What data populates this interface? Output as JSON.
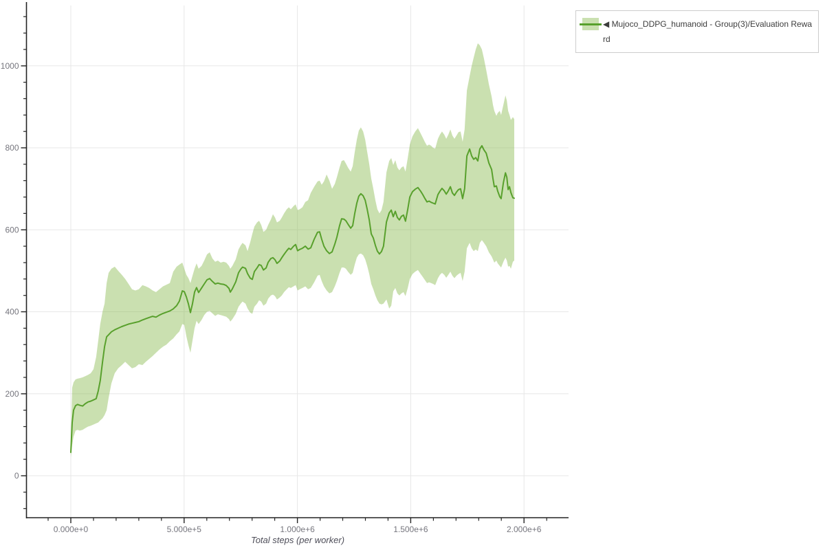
{
  "legend": {
    "collapse_icon": "◀",
    "label": "Mujoco_DDPG_humanoid - Group(3)/Evaluation Reward",
    "full_text": "◀ Mujoco_DDPG_humanoid - Group(3)/Evaluation Reward"
  },
  "axes": {
    "x": {
      "title": "Total steps (per worker)",
      "tick_values": [
        0,
        500000,
        1000000,
        1500000,
        2000000
      ],
      "tick_labels": [
        "0.000e+0",
        "5.000e+5",
        "1.000e+6",
        "1.500e+6",
        "2.000e+6"
      ],
      "minor_step": 100000
    },
    "y": {
      "tick_values": [
        0,
        200,
        400,
        600,
        800,
        1000
      ],
      "tick_labels": [
        "0",
        "200",
        "400",
        "600",
        "800",
        "1000"
      ],
      "minor_step": 40
    }
  },
  "colors": {
    "line": "#58a02c",
    "band": "rgba(138,187,80,0.45)",
    "grid": "#e7e7e7",
    "axis": "#222222",
    "tick_text": "#75757d",
    "legend_border": "#cccccc"
  },
  "chart_data": {
    "type": "line",
    "title": "",
    "xlabel": "Total steps (per worker)",
    "ylabel": "",
    "grid": true,
    "legend_position": "top-right-outside",
    "xlim": [
      -196000,
      2196000
    ],
    "ylim": [
      -102,
      1150
    ],
    "series": [
      {
        "name": "Mujoco_DDPG_humanoid - Group(3)/Evaluation Reward",
        "color": "#58a02c",
        "band_color": "rgba(138,187,80,0.45)",
        "points_format": [
          "step",
          "band_low",
          "mean",
          "band_high"
        ],
        "points": [
          [
            0,
            45,
            57,
            80
          ],
          [
            6000,
            75,
            130,
            215
          ],
          [
            12000,
            95,
            160,
            228
          ],
          [
            21000,
            110,
            171,
            235
          ],
          [
            30000,
            112,
            174,
            237
          ],
          [
            39000,
            110,
            172,
            238
          ],
          [
            52000,
            112,
            170,
            240
          ],
          [
            64000,
            116,
            176,
            243
          ],
          [
            76000,
            120,
            180,
            246
          ],
          [
            88000,
            122,
            182,
            250
          ],
          [
            100000,
            125,
            185,
            260
          ],
          [
            112000,
            128,
            188,
            290
          ],
          [
            121000,
            130,
            207,
            330
          ],
          [
            130000,
            135,
            232,
            370
          ],
          [
            140000,
            140,
            277,
            400
          ],
          [
            149000,
            148,
            315,
            420
          ],
          [
            158000,
            160,
            339,
            470
          ],
          [
            167000,
            190,
            344,
            495
          ],
          [
            179000,
            225,
            351,
            505
          ],
          [
            194000,
            250,
            356,
            510
          ],
          [
            209000,
            262,
            360,
            500
          ],
          [
            225000,
            270,
            364,
            490
          ],
          [
            240000,
            278,
            367,
            480
          ],
          [
            255000,
            270,
            370,
            468
          ],
          [
            270000,
            262,
            372,
            455
          ],
          [
            285000,
            265,
            374,
            452
          ],
          [
            300000,
            272,
            376,
            455
          ],
          [
            316000,
            270,
            380,
            465
          ],
          [
            331000,
            278,
            383,
            462
          ],
          [
            346000,
            285,
            386,
            458
          ],
          [
            361000,
            292,
            389,
            452
          ],
          [
            376000,
            300,
            387,
            448
          ],
          [
            391000,
            308,
            392,
            455
          ],
          [
            407000,
            315,
            396,
            462
          ],
          [
            422000,
            320,
            399,
            466
          ],
          [
            437000,
            328,
            402,
            470
          ],
          [
            452000,
            335,
            407,
            498
          ],
          [
            467000,
            345,
            415,
            510
          ],
          [
            479000,
            352,
            426,
            515
          ],
          [
            492000,
            370,
            451,
            520
          ],
          [
            501000,
            368,
            449,
            505
          ],
          [
            510000,
            340,
            436,
            490
          ],
          [
            519000,
            318,
            419,
            482
          ],
          [
            528000,
            300,
            398,
            470
          ],
          [
            537000,
            330,
            420,
            488
          ],
          [
            546000,
            360,
            448,
            505
          ],
          [
            555000,
            378,
            459,
            518
          ],
          [
            564000,
            370,
            447,
            505
          ],
          [
            577000,
            380,
            458,
            512
          ],
          [
            589000,
            392,
            468,
            525
          ],
          [
            601000,
            400,
            478,
            540
          ],
          [
            613000,
            402,
            481,
            545
          ],
          [
            625000,
            396,
            474,
            530
          ],
          [
            637000,
            390,
            468,
            522
          ],
          [
            649000,
            394,
            470,
            525
          ],
          [
            661000,
            392,
            468,
            520
          ],
          [
            674000,
            390,
            467,
            522
          ],
          [
            686000,
            388,
            464,
            520
          ],
          [
            698000,
            382,
            457,
            512
          ],
          [
            704000,
            376,
            448,
            505
          ],
          [
            713000,
            382,
            456,
            512
          ],
          [
            728000,
            395,
            473,
            528
          ],
          [
            740000,
            412,
            495,
            552
          ],
          [
            750000,
            420,
            504,
            562
          ],
          [
            758000,
            425,
            509,
            568
          ],
          [
            771000,
            420,
            506,
            562
          ],
          [
            780000,
            408,
            493,
            548
          ],
          [
            792000,
            398,
            482,
            570
          ],
          [
            801000,
            395,
            479,
            590
          ],
          [
            810000,
            412,
            498,
            608
          ],
          [
            822000,
            420,
            507,
            618
          ],
          [
            831000,
            428,
            515,
            622
          ],
          [
            840000,
            425,
            513,
            612
          ],
          [
            850000,
            415,
            502,
            595
          ],
          [
            862000,
            420,
            507,
            600
          ],
          [
            871000,
            432,
            521,
            612
          ],
          [
            883000,
            440,
            530,
            625
          ],
          [
            892000,
            442,
            532,
            638
          ],
          [
            901000,
            438,
            527,
            630
          ],
          [
            910000,
            430,
            518,
            618
          ],
          [
            922000,
            435,
            524,
            622
          ],
          [
            931000,
            440,
            532,
            630
          ],
          [
            941000,
            448,
            540,
            640
          ],
          [
            953000,
            455,
            549,
            650
          ],
          [
            962000,
            460,
            555,
            655
          ],
          [
            971000,
            458,
            552,
            650
          ],
          [
            983000,
            462,
            560,
            658
          ],
          [
            992000,
            465,
            564,
            662
          ],
          [
            1001000,
            452,
            549,
            648
          ],
          [
            1010000,
            455,
            552,
            650
          ],
          [
            1022000,
            458,
            555,
            655
          ],
          [
            1035000,
            462,
            560,
            668
          ],
          [
            1047000,
            455,
            553,
            672
          ],
          [
            1059000,
            458,
            556,
            690
          ],
          [
            1074000,
            472,
            577,
            705
          ],
          [
            1089000,
            488,
            594,
            718
          ],
          [
            1098000,
            490,
            595,
            720
          ],
          [
            1107000,
            475,
            577,
            710
          ],
          [
            1117000,
            462,
            560,
            718
          ],
          [
            1129000,
            452,
            549,
            735
          ],
          [
            1141000,
            445,
            542,
            720
          ],
          [
            1153000,
            448,
            546,
            700
          ],
          [
            1165000,
            462,
            565,
            712
          ],
          [
            1174000,
            475,
            582,
            728
          ],
          [
            1186000,
            495,
            610,
            752
          ],
          [
            1195000,
            508,
            627,
            768
          ],
          [
            1205000,
            508,
            626,
            770
          ],
          [
            1214000,
            505,
            622,
            762
          ],
          [
            1223000,
            498,
            614,
            752
          ],
          [
            1235000,
            490,
            604,
            742
          ],
          [
            1244000,
            495,
            610,
            755
          ],
          [
            1253000,
            515,
            640,
            790
          ],
          [
            1262000,
            532,
            665,
            820
          ],
          [
            1271000,
            540,
            682,
            842
          ],
          [
            1280000,
            542,
            688,
            850
          ],
          [
            1290000,
            538,
            683,
            840
          ],
          [
            1299000,
            528,
            672,
            820
          ],
          [
            1308000,
            512,
            650,
            790
          ],
          [
            1317000,
            492,
            624,
            760
          ],
          [
            1326000,
            468,
            590,
            725
          ],
          [
            1335000,
            455,
            580,
            700
          ],
          [
            1344000,
            440,
            562,
            672
          ],
          [
            1353000,
            428,
            548,
            650
          ],
          [
            1362000,
            420,
            541,
            640
          ],
          [
            1371000,
            418,
            547,
            648
          ],
          [
            1380000,
            420,
            560,
            668
          ],
          [
            1393000,
            430,
            619,
            740
          ],
          [
            1405000,
            408,
            641,
            768
          ],
          [
            1414000,
            415,
            648,
            775
          ],
          [
            1423000,
            450,
            632,
            758
          ],
          [
            1432000,
            458,
            645,
            770
          ],
          [
            1441000,
            445,
            630,
            752
          ],
          [
            1450000,
            440,
            624,
            745
          ],
          [
            1459000,
            445,
            633,
            752
          ],
          [
            1468000,
            448,
            636,
            755
          ],
          [
            1477000,
            438,
            621,
            742
          ],
          [
            1487000,
            458,
            650,
            775
          ],
          [
            1496000,
            480,
            680,
            808
          ],
          [
            1508000,
            492,
            693,
            828
          ],
          [
            1520000,
            498,
            699,
            840
          ],
          [
            1532000,
            502,
            703,
            848
          ],
          [
            1544000,
            492,
            694,
            835
          ],
          [
            1553000,
            485,
            686,
            825
          ],
          [
            1562000,
            478,
            677,
            815
          ],
          [
            1572000,
            470,
            668,
            805
          ],
          [
            1581000,
            472,
            670,
            808
          ],
          [
            1590000,
            470,
            667,
            805
          ],
          [
            1599000,
            468,
            665,
            800
          ],
          [
            1608000,
            465,
            663,
            798
          ],
          [
            1620000,
            482,
            686,
            822
          ],
          [
            1629000,
            490,
            694,
            832
          ],
          [
            1638000,
            495,
            701,
            840
          ],
          [
            1648000,
            490,
            695,
            832
          ],
          [
            1657000,
            483,
            687,
            822
          ],
          [
            1666000,
            490,
            695,
            832
          ],
          [
            1675000,
            498,
            705,
            845
          ],
          [
            1684000,
            488,
            690,
            830
          ],
          [
            1693000,
            482,
            684,
            822
          ],
          [
            1702000,
            488,
            692,
            830
          ],
          [
            1711000,
            492,
            698,
            838
          ],
          [
            1720000,
            495,
            700,
            840
          ],
          [
            1729000,
            475,
            676,
            815
          ],
          [
            1738000,
            498,
            700,
            845
          ],
          [
            1748000,
            555,
            780,
            940
          ],
          [
            1760000,
            568,
            797,
            975
          ],
          [
            1769000,
            555,
            780,
            1000
          ],
          [
            1778000,
            548,
            772,
            1020
          ],
          [
            1787000,
            552,
            776,
            1040
          ],
          [
            1796000,
            548,
            768,
            1055
          ],
          [
            1805000,
            568,
            797,
            1050
          ],
          [
            1814000,
            575,
            805,
            1040
          ],
          [
            1823000,
            568,
            795,
            1018
          ],
          [
            1833000,
            560,
            787,
            990
          ],
          [
            1845000,
            545,
            763,
            955
          ],
          [
            1857000,
            535,
            747,
            925
          ],
          [
            1863000,
            528,
            725,
            905
          ],
          [
            1869000,
            520,
            705,
            890
          ],
          [
            1878000,
            525,
            707,
            878
          ],
          [
            1884000,
            518,
            694,
            885
          ],
          [
            1893000,
            512,
            681,
            890
          ],
          [
            1899000,
            508,
            676,
            880
          ],
          [
            1909000,
            522,
            715,
            905
          ],
          [
            1918000,
            532,
            739,
            928
          ],
          [
            1924000,
            525,
            728,
            915
          ],
          [
            1930000,
            510,
            698,
            890
          ],
          [
            1936000,
            512,
            705,
            880
          ],
          [
            1942000,
            505,
            691,
            868
          ],
          [
            1951000,
            522,
            678,
            875
          ],
          [
            1957000,
            525,
            677,
            870
          ]
        ]
      }
    ]
  }
}
